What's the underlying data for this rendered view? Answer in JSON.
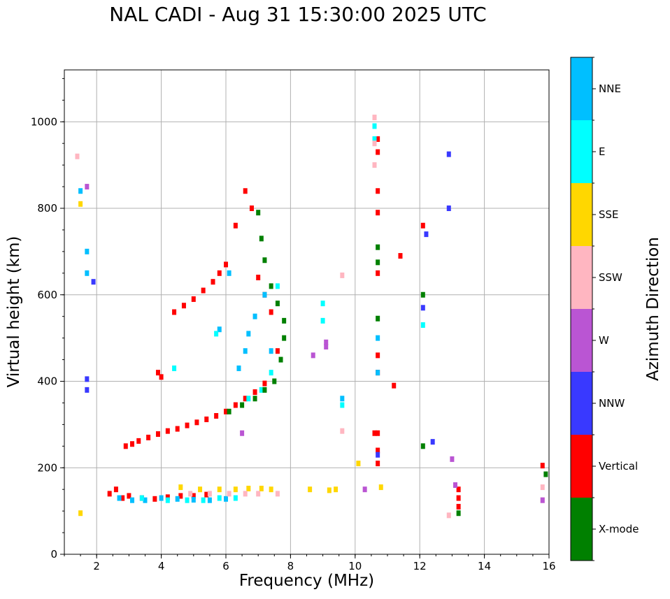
{
  "chart_data": {
    "type": "scatter",
    "title": "NAL CADI - Aug 31 15:30:00 2025 UTC",
    "xlabel": "Frequency (MHz)",
    "ylabel": "Virtual height (km)",
    "xlim": [
      1,
      16
    ],
    "ylim": [
      0,
      1120
    ],
    "xticks": [
      "2",
      "4",
      "6",
      "8",
      "10",
      "12",
      "14",
      "16"
    ],
    "yticks": [
      "0",
      "200",
      "400",
      "600",
      "800",
      "1000"
    ],
    "grid": true,
    "colorbar": {
      "label": "Azimuth Direction",
      "categories": [
        {
          "name": "NNE",
          "color": "#00bfff"
        },
        {
          "name": "E",
          "color": "#00ffff"
        },
        {
          "name": "SSE",
          "color": "#ffd700"
        },
        {
          "name": "SSW",
          "color": "#ffb6c1"
        },
        {
          "name": "W",
          "color": "#ba55d3"
        },
        {
          "name": "NNW",
          "color": "#3939ff"
        },
        {
          "name": "Vertical",
          "color": "#ff0000"
        },
        {
          "name": "X-mode",
          "color": "#008000"
        }
      ]
    },
    "series": [
      {
        "name": "Vertical",
        "points": [
          [
            2.4,
            140
          ],
          [
            2.6,
            150
          ],
          [
            2.8,
            130
          ],
          [
            3.0,
            135
          ],
          [
            3.4,
            130
          ],
          [
            3.8,
            128
          ],
          [
            4.2,
            132
          ],
          [
            4.6,
            135
          ],
          [
            5.0,
            135
          ],
          [
            5.4,
            138
          ],
          [
            2.9,
            250
          ],
          [
            3.1,
            255
          ],
          [
            3.3,
            262
          ],
          [
            3.6,
            270
          ],
          [
            3.9,
            278
          ],
          [
            4.2,
            285
          ],
          [
            4.5,
            290
          ],
          [
            4.8,
            298
          ],
          [
            5.1,
            305
          ],
          [
            5.4,
            312
          ],
          [
            5.7,
            320
          ],
          [
            6.0,
            330
          ],
          [
            6.3,
            345
          ],
          [
            6.6,
            360
          ],
          [
            6.9,
            375
          ],
          [
            7.2,
            395
          ],
          [
            3.9,
            420
          ],
          [
            4.0,
            410
          ],
          [
            4.4,
            560
          ],
          [
            4.7,
            575
          ],
          [
            5.0,
            590
          ],
          [
            5.3,
            610
          ],
          [
            5.6,
            630
          ],
          [
            5.8,
            650
          ],
          [
            6.0,
            670
          ],
          [
            6.3,
            760
          ],
          [
            6.6,
            840
          ],
          [
            6.8,
            800
          ],
          [
            7.0,
            640
          ],
          [
            7.2,
            600
          ],
          [
            7.4,
            560
          ],
          [
            7.6,
            470
          ],
          [
            10.7,
            960
          ],
          [
            10.7,
            930
          ],
          [
            10.7,
            840
          ],
          [
            10.7,
            790
          ],
          [
            10.7,
            650
          ],
          [
            10.7,
            460
          ],
          [
            10.7,
            420
          ],
          [
            10.7,
            280
          ],
          [
            10.7,
            240
          ],
          [
            10.7,
            210
          ],
          [
            11.2,
            390
          ],
          [
            13.2,
            150
          ],
          [
            13.2,
            130
          ],
          [
            13.2,
            110
          ],
          [
            12.1,
            760
          ],
          [
            11.4,
            690
          ],
          [
            10.6,
            280
          ],
          [
            15.8,
            205
          ]
        ]
      },
      {
        "name": "NNE",
        "points": [
          [
            2.7,
            130
          ],
          [
            3.1,
            125
          ],
          [
            3.5,
            125
          ],
          [
            4.0,
            130
          ],
          [
            4.5,
            128
          ],
          [
            5.0,
            126
          ],
          [
            5.5,
            125
          ],
          [
            6.0,
            128
          ],
          [
            6.4,
            430
          ],
          [
            6.6,
            470
          ],
          [
            6.7,
            510
          ],
          [
            6.9,
            550
          ],
          [
            7.2,
            600
          ],
          [
            7.4,
            470
          ],
          [
            1.7,
            700
          ],
          [
            1.7,
            650
          ],
          [
            1.5,
            840
          ],
          [
            9.6,
            360
          ],
          [
            10.7,
            500
          ],
          [
            10.7,
            420
          ],
          [
            6.1,
            650
          ],
          [
            5.8,
            520
          ]
        ]
      },
      {
        "name": "E",
        "points": [
          [
            3.4,
            130
          ],
          [
            4.2,
            125
          ],
          [
            4.8,
            125
          ],
          [
            5.3,
            125
          ],
          [
            5.8,
            130
          ],
          [
            6.3,
            130
          ],
          [
            6.7,
            360
          ],
          [
            7.1,
            380
          ],
          [
            7.4,
            420
          ],
          [
            7.6,
            620
          ],
          [
            9.0,
            540
          ],
          [
            9.0,
            580
          ],
          [
            10.6,
            990
          ],
          [
            10.6,
            960
          ],
          [
            12.1,
            530
          ],
          [
            9.6,
            345
          ],
          [
            4.4,
            430
          ],
          [
            5.7,
            510
          ]
        ]
      },
      {
        "name": "X-mode",
        "points": [
          [
            6.1,
            330
          ],
          [
            6.5,
            345
          ],
          [
            6.9,
            360
          ],
          [
            7.2,
            380
          ],
          [
            7.5,
            400
          ],
          [
            7.7,
            450
          ],
          [
            7.8,
            500
          ],
          [
            7.8,
            540
          ],
          [
            7.6,
            580
          ],
          [
            7.4,
            620
          ],
          [
            7.2,
            680
          ],
          [
            7.1,
            730
          ],
          [
            7.0,
            790
          ],
          [
            10.7,
            545
          ],
          [
            10.7,
            710
          ],
          [
            10.7,
            675
          ],
          [
            12.1,
            250
          ],
          [
            12.1,
            600
          ],
          [
            13.2,
            95
          ],
          [
            15.9,
            185
          ]
        ]
      },
      {
        "name": "SSE",
        "points": [
          [
            4.6,
            155
          ],
          [
            5.2,
            150
          ],
          [
            5.8,
            150
          ],
          [
            6.3,
            150
          ],
          [
            6.7,
            152
          ],
          [
            7.1,
            152
          ],
          [
            7.4,
            150
          ],
          [
            8.6,
            150
          ],
          [
            9.2,
            148
          ],
          [
            9.4,
            150
          ],
          [
            1.5,
            810
          ],
          [
            1.5,
            95
          ],
          [
            10.1,
            210
          ],
          [
            10.8,
            155
          ]
        ]
      },
      {
        "name": "SSW",
        "points": [
          [
            4.9,
            140
          ],
          [
            5.5,
            140
          ],
          [
            6.1,
            140
          ],
          [
            6.6,
            140
          ],
          [
            7.0,
            140
          ],
          [
            7.6,
            140
          ],
          [
            1.4,
            920
          ],
          [
            10.6,
            1010
          ],
          [
            10.6,
            900
          ],
          [
            10.6,
            950
          ],
          [
            9.6,
            645
          ],
          [
            9.6,
            285
          ],
          [
            12.9,
            90
          ],
          [
            15.8,
            155
          ],
          [
            15.8,
            125
          ]
        ]
      },
      {
        "name": "W",
        "points": [
          [
            9.1,
            490
          ],
          [
            9.1,
            480
          ],
          [
            8.7,
            460
          ],
          [
            10.3,
            150
          ],
          [
            13.1,
            160
          ],
          [
            13.0,
            220
          ],
          [
            15.8,
            125
          ],
          [
            6.5,
            280
          ],
          [
            1.7,
            850
          ]
        ]
      },
      {
        "name": "NNW",
        "points": [
          [
            12.9,
            925
          ],
          [
            12.9,
            800
          ],
          [
            12.2,
            740
          ],
          [
            12.1,
            570
          ],
          [
            12.4,
            260
          ],
          [
            10.7,
            230
          ],
          [
            1.7,
            405
          ],
          [
            1.7,
            380
          ],
          [
            1.9,
            630
          ]
        ]
      }
    ]
  }
}
